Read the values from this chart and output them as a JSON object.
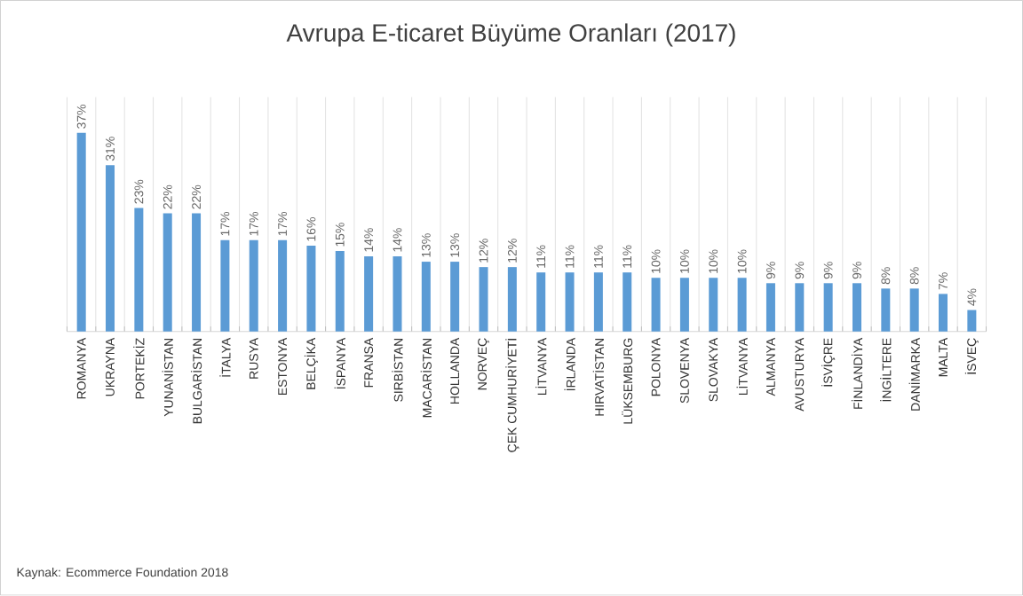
{
  "chart_data": {
    "type": "bar",
    "title": "Avrupa E-ticaret Büyüme Oranları (2017)",
    "categories": [
      "ROMANYA",
      "UKRAYNA",
      "PORTEKİZ",
      "YUNANİSTAN",
      "BULGARİSTAN",
      "İTALYA",
      "RUSYA",
      "ESTONYA",
      "BELÇİKA",
      "İSPANYA",
      "FRANSA",
      "SIRBİSTAN",
      "MACARİSTAN",
      "HOLLANDA",
      "NORVEÇ",
      "ÇEK CUMHURİYETİ",
      "LİTVANYA",
      "İRLANDA",
      "HIRVATİSTAN",
      "LÜKSEMBURG",
      "POLONYA",
      "SLOVENYA",
      "SLOVAKYA",
      "LİTVANYA",
      "ALMANYA",
      "AVUSTURYA",
      "İSVİÇRE",
      "FİNLANDİYA",
      "İNGİLTERE",
      "DANİMARKA",
      "MALTA",
      "İSVEÇ"
    ],
    "values": [
      37,
      31,
      23,
      22,
      22,
      17,
      17,
      17,
      16,
      15,
      14,
      14,
      13,
      13,
      12,
      12,
      11,
      11,
      11,
      11,
      10,
      10,
      10,
      10,
      9,
      9,
      9,
      9,
      8,
      8,
      7,
      4
    ],
    "value_labels": [
      "37%",
      "31%",
      "23%",
      "22%",
      "22%",
      "17%",
      "17%",
      "17%",
      "16%",
      "15%",
      "14%",
      "14%",
      "13%",
      "13%",
      "12%",
      "12%",
      "11%",
      "11%",
      "11%",
      "11%",
      "10%",
      "10%",
      "10%",
      "10%",
      "9%",
      "9%",
      "9%",
      "9%",
      "8%",
      "8%",
      "7%",
      "4%"
    ],
    "color": "#5b9bd5",
    "grid": "x",
    "annotations": [
      "Kaynak: Ecommerce Foundation 2018"
    ]
  }
}
